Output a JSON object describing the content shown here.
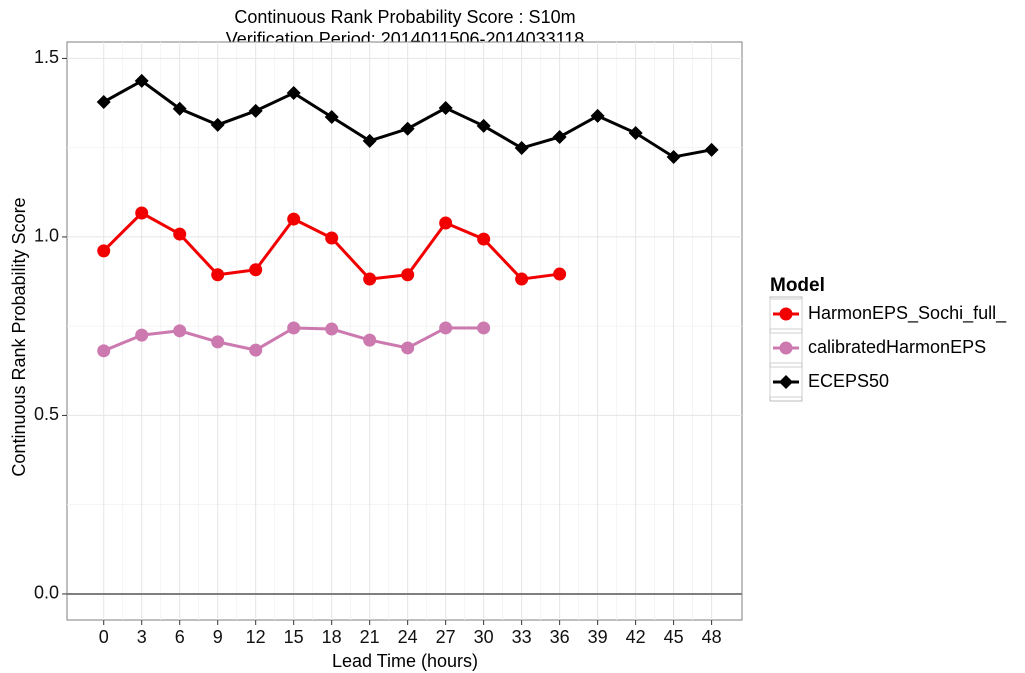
{
  "chart_data": {
    "type": "line",
    "title": "Continuous Rank Probability Score : S10m",
    "subtitle": "Verification Period: 2014011506-2014033118",
    "x_label": "Lead Time (hours)",
    "y_label": "Continuous Rank Probability Score",
    "legend_title": "Model",
    "x": [
      0,
      3,
      6,
      9,
      12,
      15,
      18,
      21,
      24,
      27,
      30,
      33,
      36,
      39,
      42,
      45,
      48
    ],
    "series": [
      {
        "name": "HarmonEPS_Sochi_full_",
        "color": "#f20000",
        "marker": "circle",
        "values": [
          0.961,
          1.067,
          1.008,
          0.894,
          0.908,
          1.05,
          0.997,
          0.882,
          0.894,
          1.039,
          0.994,
          0.882,
          0.896,
          null,
          null,
          null,
          null
        ]
      },
      {
        "name": "calibratedHarmonEPS",
        "color": "#cc79b0",
        "marker": "circle",
        "values": [
          0.681,
          0.725,
          0.737,
          0.706,
          0.683,
          0.745,
          0.742,
          0.711,
          0.689,
          0.745,
          0.745,
          null,
          null,
          null,
          null,
          null,
          null
        ]
      },
      {
        "name": "ECEPS50",
        "color": "#000000",
        "marker": "diamond",
        "values": [
          1.378,
          1.437,
          1.359,
          1.314,
          1.353,
          1.403,
          1.336,
          1.269,
          1.303,
          1.361,
          1.311,
          1.249,
          1.28,
          1.339,
          1.291,
          1.224,
          1.244
        ]
      }
    ],
    "xlim": [
      -2.9,
      50.4
    ],
    "ylim": [
      -0.073,
      1.546
    ],
    "xticks": [
      0,
      3,
      6,
      9,
      12,
      15,
      18,
      21,
      24,
      27,
      30,
      33,
      36,
      39,
      42,
      45,
      48
    ],
    "yticks": [
      {
        "value": 0,
        "label": "0.0"
      },
      {
        "value": 0.5,
        "label": "0.5"
      },
      {
        "value": 1,
        "label": "1.0"
      },
      {
        "value": 1.5,
        "label": "1.5"
      }
    ],
    "hline": 0,
    "grid": true
  }
}
